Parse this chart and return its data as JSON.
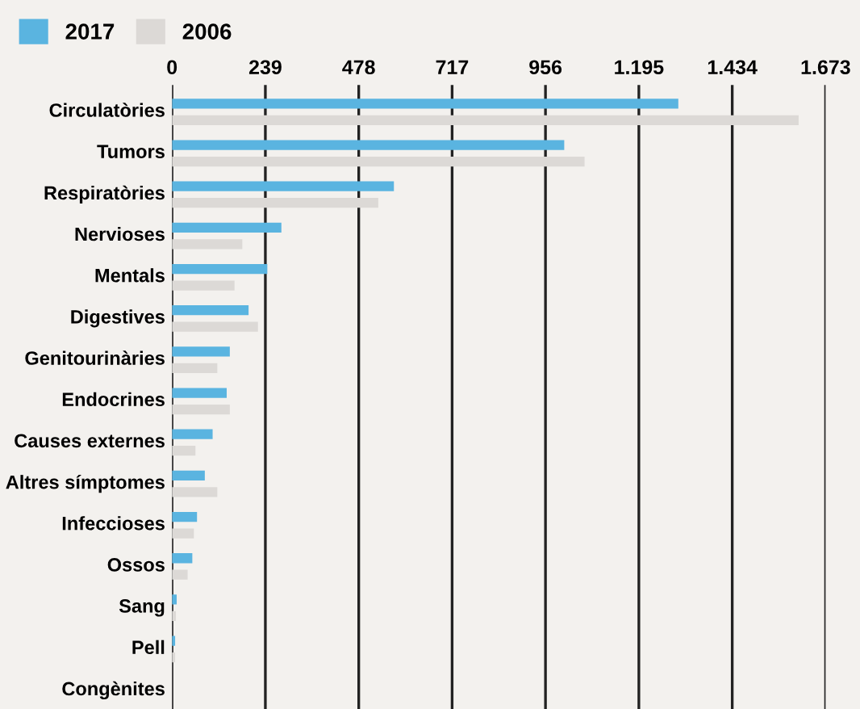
{
  "chart_data": {
    "type": "bar",
    "orientation": "horizontal",
    "categories": [
      "Circulatòries",
      "Tumors",
      "Respiratòries",
      "Nervioses",
      "Mentals",
      "Digestives",
      "Genitourinàries",
      "Endocrines",
      "Causes externes",
      "Altres símptomes",
      "Infeccioses",
      "Ossos",
      "Sang",
      "Pell",
      "Congènites"
    ],
    "series": [
      {
        "name": "2017",
        "color": "#5ab4e0",
        "values": [
          1296,
          1004,
          568,
          280,
          244,
          196,
          148,
          140,
          104,
          84,
          64,
          52,
          12,
          8,
          null
        ]
      },
      {
        "name": "2006",
        "color": "#dcd9d6",
        "values": [
          1604,
          1056,
          528,
          180,
          160,
          220,
          116,
          148,
          60,
          116,
          56,
          40,
          10,
          8,
          null
        ]
      }
    ],
    "xlim": [
      0,
      1673
    ],
    "xticks": [
      0,
      239,
      478,
      717,
      956,
      {
        "value": 1195,
        "label": "1.195"
      },
      {
        "value": 1434,
        "label": "1.434"
      },
      {
        "value": 1673,
        "label": "1.673"
      }
    ],
    "grid": "x",
    "legend": "top left"
  }
}
